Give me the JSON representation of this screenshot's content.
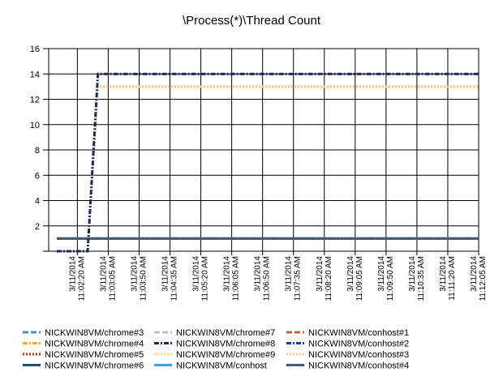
{
  "chart_data": {
    "type": "line",
    "title": "\\Process(*)\\Thread Count",
    "xlabel": "",
    "ylabel": "",
    "ylim": [
      0,
      16
    ],
    "yticks": [
      2,
      4,
      6,
      8,
      10,
      12,
      14,
      16
    ],
    "grid": true,
    "legend_position": "bottom",
    "x_tick_labels": [
      [
        "3/11/2014",
        "11:02:20 AM"
      ],
      [
        "3/11/2014",
        "11:03:05 AM"
      ],
      [
        "3/11/2014",
        "11:03:50 AM"
      ],
      [
        "3/11/2014",
        "11:04:35 AM"
      ],
      [
        "3/11/2014",
        "11:05:20 AM"
      ],
      [
        "3/11/2014",
        "11:06:05 AM"
      ],
      [
        "3/11/2014",
        "11:06:50 AM"
      ],
      [
        "3/11/2014",
        "11:07:35 AM"
      ],
      [
        "3/11/2014",
        "11:08:20 AM"
      ],
      [
        "3/11/2014",
        "11:09:05 AM"
      ],
      [
        "3/11/2014",
        "11:09:50 AM"
      ],
      [
        "3/11/2014",
        "11:10:35 AM"
      ],
      [
        "3/11/2014",
        "11:11:20 AM"
      ],
      [
        "3/11/2014",
        "11:12:05 AM"
      ]
    ],
    "x": [
      "11:01:50 AM",
      "11:02:05 AM",
      "11:02:20 AM",
      "11:02:35 AM",
      "11:02:50 AM",
      "11:03:05 AM",
      "11:12:05 AM"
    ],
    "series": [
      {
        "name": "NICKWIN8VM/chrome#3",
        "color": "#4a90d9",
        "dash": "dash",
        "values": [
          1,
          1,
          1,
          1,
          1,
          1,
          1
        ]
      },
      {
        "name": "NICKWIN8VM/chrome#4",
        "color": "#f5a623",
        "dash": "dashdot",
        "values": [
          1,
          1,
          1,
          1,
          1,
          1,
          1
        ]
      },
      {
        "name": "NICKWIN8VM/chrome#5",
        "color": "#b03010",
        "dash": "dot",
        "values": [
          0,
          0,
          0,
          0,
          13,
          13,
          13
        ]
      },
      {
        "name": "NICKWIN8VM/chrome#6",
        "color": "#1f4e79",
        "dash": "solid",
        "values": [
          1,
          1,
          1,
          1,
          1,
          1,
          1
        ]
      },
      {
        "name": "NICKWIN8VM/chrome#7",
        "color": "#c0c0c0",
        "dash": "dash",
        "values": [
          1,
          1,
          1,
          1,
          1,
          1,
          1
        ]
      },
      {
        "name": "NICKWIN8VM/chrome#8",
        "color": "#1a2a5a",
        "dash": "dashdot",
        "values": [
          0,
          0,
          0,
          0,
          14,
          14,
          14
        ]
      },
      {
        "name": "NICKWIN8VM/chrome#9",
        "color": "#f7dc8a",
        "dash": "dot",
        "values": [
          0,
          0,
          0,
          0,
          13,
          13,
          13
        ]
      },
      {
        "name": "NICKWIN8VM/conhost",
        "color": "#3aa0e8",
        "dash": "solid",
        "values": [
          1,
          1,
          1,
          1,
          1,
          1,
          1
        ]
      },
      {
        "name": "NICKWIN8VM/conhost#1",
        "color": "#d0603a",
        "dash": "dash",
        "values": [
          1,
          1,
          1,
          1,
          1,
          1,
          1
        ]
      },
      {
        "name": "NICKWIN8VM/conhost#2",
        "color": "#0b3fa8",
        "dash": "dashdot",
        "values": [
          1,
          1,
          1,
          1,
          1,
          1,
          1
        ]
      },
      {
        "name": "NICKWIN8VM/conhost#3",
        "color": "#f2d29a",
        "dash": "dot",
        "values": [
          1,
          1,
          1,
          1,
          1,
          1,
          1
        ]
      },
      {
        "name": "NICKWIN8VM/conhost#4",
        "color": "#4a5a6e",
        "dash": "solid",
        "values": [
          1,
          1,
          1,
          1,
          1,
          1,
          1
        ]
      }
    ]
  }
}
